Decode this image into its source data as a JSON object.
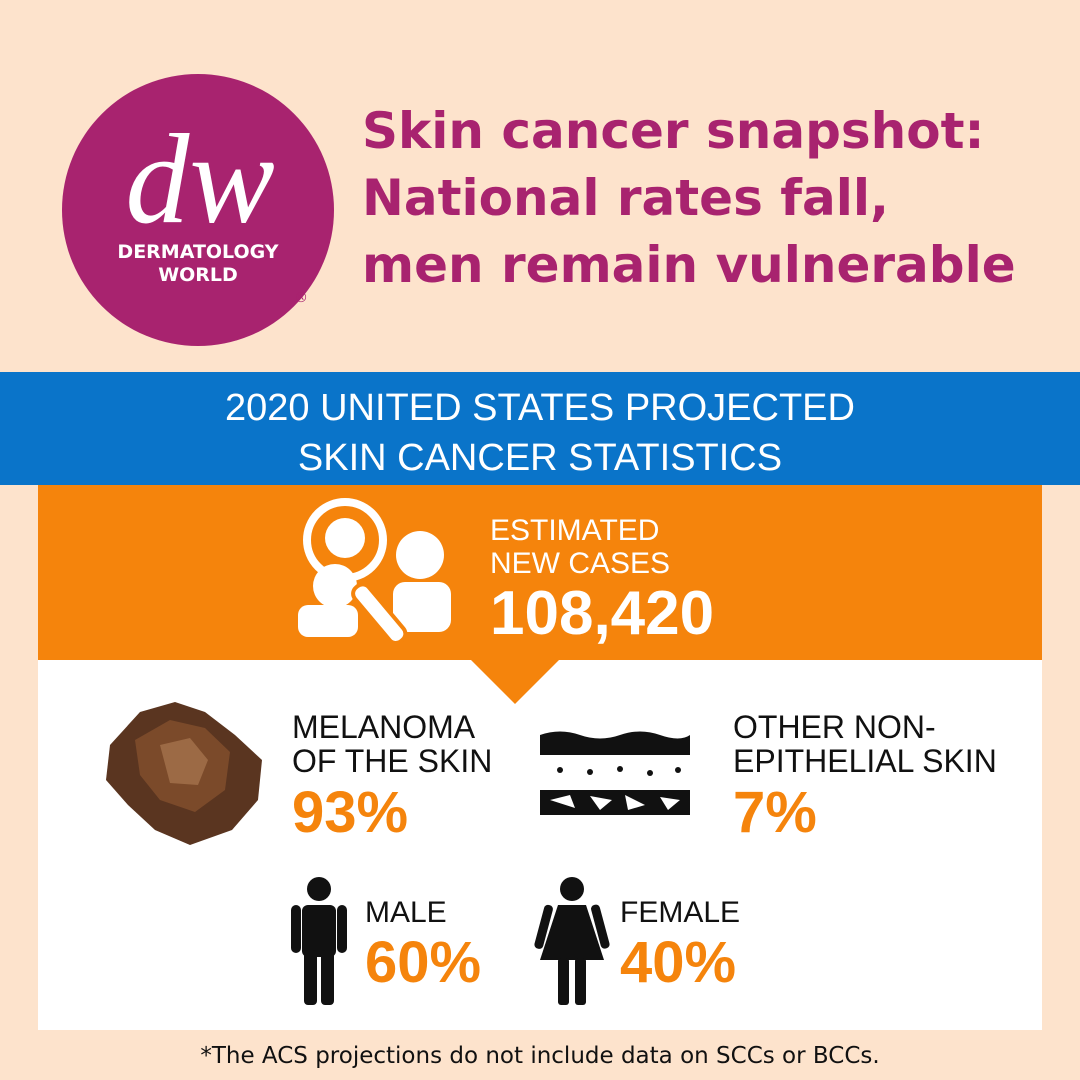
{
  "logo": {
    "mark": "dw",
    "name_lines": [
      "DERMATOLOGY",
      "WORLD"
    ],
    "registered": "®"
  },
  "header": {
    "title_lines": [
      "Skin cancer snapshot:",
      "National rates fall,",
      "men remain vulnerable"
    ]
  },
  "banner": {
    "lines": [
      "2020 UNITED STATES PROJECTED",
      "SKIN CANCER STATISTICS"
    ]
  },
  "total": {
    "label_lines": [
      "ESTIMATED",
      "NEW CASES"
    ],
    "value": "108,420"
  },
  "types": [
    {
      "label_lines": [
        "MELANOMA",
        "OF THE SKIN"
      ],
      "value": "93%"
    },
    {
      "label_lines": [
        "OTHER NON-",
        "EPITHELIAL SKIN"
      ],
      "value": "7%"
    }
  ],
  "sex": [
    {
      "label": "MALE",
      "value": "60%"
    },
    {
      "label": "FEMALE",
      "value": "40%"
    }
  ],
  "footnote": "*The ACS projections do not include data on SCCs or BCCs."
}
